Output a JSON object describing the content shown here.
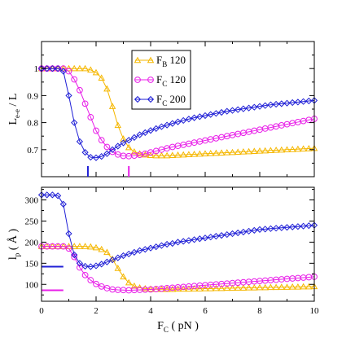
{
  "chart_data": [
    {
      "panel": "top",
      "type": "line",
      "ylabel": "L",
      "ylabel_subscript": "e-e",
      "ylabel_suffix": " / L",
      "xlim": [
        0,
        10
      ],
      "ylim": [
        0.6,
        1.1
      ],
      "yticks": [
        0.7,
        0.8,
        0.9,
        1
      ],
      "ytick_labels": [
        "0.7",
        "0.8",
        "0.9",
        "1"
      ],
      "series": [
        {
          "name": "F",
          "name_sub": "B",
          "name_suffix": " 120",
          "color": "#f5b700",
          "marker": "triangle",
          "x": [
            0,
            0.2,
            0.4,
            0.6,
            0.8,
            1.0,
            1.2,
            1.4,
            1.6,
            1.8,
            2.0,
            2.2,
            2.4,
            2.6,
            2.8,
            3.0,
            3.2,
            3.4,
            3.6,
            3.8,
            4.0,
            4.2,
            4.4,
            4.6,
            4.8,
            5.0,
            5.2,
            5.4,
            5.6,
            5.8,
            6.0,
            6.2,
            6.4,
            6.6,
            6.8,
            7.0,
            7.2,
            7.4,
            7.6,
            7.8,
            8.0,
            8.2,
            8.4,
            8.6,
            8.8,
            9.0,
            9.2,
            9.4,
            9.6,
            9.8,
            10.0
          ],
          "y": [
            1.0,
            1.0,
            1.0,
            1.0,
            1.0,
            1.0,
            1.0,
            1.0,
            1.0,
            0.995,
            0.985,
            0.965,
            0.925,
            0.86,
            0.79,
            0.74,
            0.708,
            0.692,
            0.685,
            0.681,
            0.679,
            0.678,
            0.678,
            0.678,
            0.679,
            0.68,
            0.681,
            0.682,
            0.683,
            0.684,
            0.685,
            0.686,
            0.687,
            0.688,
            0.689,
            0.69,
            0.691,
            0.692,
            0.693,
            0.694,
            0.695,
            0.696,
            0.697,
            0.698,
            0.699,
            0.7,
            0.701,
            0.702,
            0.703,
            0.704,
            0.705
          ]
        },
        {
          "name": "F",
          "name_sub": "C",
          "name_suffix": " 120",
          "color": "#e81ee8",
          "marker": "circle",
          "x": [
            0,
            0.2,
            0.4,
            0.6,
            0.8,
            1.0,
            1.2,
            1.4,
            1.6,
            1.8,
            2.0,
            2.2,
            2.4,
            2.6,
            2.8,
            3.0,
            3.2,
            3.4,
            3.6,
            3.8,
            4.0,
            4.2,
            4.4,
            4.6,
            4.8,
            5.0,
            5.2,
            5.4,
            5.6,
            5.8,
            6.0,
            6.2,
            6.4,
            6.6,
            6.8,
            7.0,
            7.2,
            7.4,
            7.6,
            7.8,
            8.0,
            8.2,
            8.4,
            8.6,
            8.8,
            9.0,
            9.2,
            9.4,
            9.6,
            9.8,
            10.0
          ],
          "y": [
            1.0,
            1.0,
            1.0,
            1.0,
            1.0,
            0.99,
            0.96,
            0.92,
            0.87,
            0.82,
            0.77,
            0.735,
            0.71,
            0.692,
            0.682,
            0.677,
            0.676,
            0.678,
            0.681,
            0.685,
            0.69,
            0.695,
            0.7,
            0.705,
            0.71,
            0.714,
            0.718,
            0.722,
            0.726,
            0.73,
            0.734,
            0.738,
            0.742,
            0.746,
            0.75,
            0.754,
            0.758,
            0.762,
            0.766,
            0.77,
            0.774,
            0.778,
            0.782,
            0.786,
            0.79,
            0.794,
            0.798,
            0.802,
            0.806,
            0.81,
            0.814
          ]
        },
        {
          "name": "F",
          "name_sub": "C",
          "name_suffix": " 200",
          "color": "#1f1fd6",
          "marker": "diamond",
          "x": [
            0,
            0.2,
            0.4,
            0.6,
            0.8,
            1.0,
            1.2,
            1.4,
            1.6,
            1.8,
            2.0,
            2.2,
            2.4,
            2.6,
            2.8,
            3.0,
            3.2,
            3.4,
            3.6,
            3.8,
            4.0,
            4.2,
            4.4,
            4.6,
            4.8,
            5.0,
            5.2,
            5.4,
            5.6,
            5.8,
            6.0,
            6.2,
            6.4,
            6.6,
            6.8,
            7.0,
            7.2,
            7.4,
            7.6,
            7.8,
            8.0,
            8.2,
            8.4,
            8.6,
            8.8,
            9.0,
            9.2,
            9.4,
            9.6,
            9.8,
            10.0
          ],
          "y": [
            1.0,
            1.0,
            1.0,
            1.0,
            0.99,
            0.9,
            0.8,
            0.73,
            0.69,
            0.672,
            0.67,
            0.675,
            0.685,
            0.7,
            0.713,
            0.725,
            0.735,
            0.745,
            0.755,
            0.763,
            0.771,
            0.778,
            0.785,
            0.791,
            0.797,
            0.803,
            0.808,
            0.813,
            0.818,
            0.822,
            0.826,
            0.83,
            0.834,
            0.838,
            0.842,
            0.845,
            0.848,
            0.851,
            0.854,
            0.857,
            0.86,
            0.863,
            0.866,
            0.868,
            0.87,
            0.872,
            0.874,
            0.876,
            0.878,
            0.88,
            0.882
          ]
        }
      ],
      "markers_on_axis": [
        {
          "x": 1.7,
          "color": "#1f1fd6"
        },
        {
          "x": 3.2,
          "color": "#e81ee8"
        }
      ],
      "legend": "top-center"
    },
    {
      "panel": "bottom",
      "type": "line",
      "xlabel": "F",
      "xlabel_subscript": "C",
      "xlabel_suffix": " ( pN )",
      "ylabel": "l",
      "ylabel_subscript": "p",
      "ylabel_suffix": " ( Å )",
      "xlim": [
        0,
        10
      ],
      "ylim": [
        60,
        330
      ],
      "xticks": [
        0,
        2,
        4,
        6,
        8,
        10
      ],
      "xtick_labels": [
        "0",
        "2",
        "4",
        "6",
        "8",
        "10"
      ],
      "yticks": [
        100,
        150,
        200,
        250,
        300
      ],
      "ytick_labels": [
        "100",
        "150",
        "200",
        "250",
        "300"
      ],
      "series": [
        {
          "name": "F",
          "name_sub": "B",
          "name_suffix": " 120",
          "color": "#f5b700",
          "marker": "triangle",
          "x": [
            0,
            0.2,
            0.4,
            0.6,
            0.8,
            1.0,
            1.2,
            1.4,
            1.6,
            1.8,
            2.0,
            2.2,
            2.4,
            2.6,
            2.8,
            3.0,
            3.2,
            3.4,
            3.6,
            3.8,
            4.0,
            4.2,
            4.4,
            4.6,
            4.8,
            5.0,
            5.2,
            5.4,
            5.6,
            5.8,
            6.0,
            6.2,
            6.4,
            6.6,
            6.8,
            7.0,
            7.2,
            7.4,
            7.6,
            7.8,
            8.0,
            8.2,
            8.4,
            8.6,
            8.8,
            9.0,
            9.2,
            9.4,
            9.6,
            9.8,
            10.0
          ],
          "y": [
            190,
            190,
            190,
            190,
            190,
            190,
            190,
            190,
            190,
            189,
            187,
            183,
            176,
            160,
            138,
            118,
            104,
            96,
            92,
            90,
            89,
            88.5,
            88.5,
            88.5,
            88.5,
            89,
            89,
            89,
            89.5,
            89.5,
            90,
            90,
            90.5,
            90.5,
            91,
            91,
            91.5,
            91.5,
            92,
            92,
            92.5,
            92.5,
            93,
            93,
            93.5,
            93.5,
            94,
            94,
            94.5,
            94.5,
            95
          ]
        },
        {
          "name": "F",
          "name_sub": "C",
          "name_suffix": " 120",
          "color": "#e81ee8",
          "marker": "circle",
          "x": [
            0,
            0.2,
            0.4,
            0.6,
            0.8,
            1.0,
            1.2,
            1.4,
            1.6,
            1.8,
            2.0,
            2.2,
            2.4,
            2.6,
            2.8,
            3.0,
            3.2,
            3.4,
            3.6,
            3.8,
            4.0,
            4.2,
            4.4,
            4.6,
            4.8,
            5.0,
            5.2,
            5.4,
            5.6,
            5.8,
            6.0,
            6.2,
            6.4,
            6.6,
            6.8,
            7.0,
            7.2,
            7.4,
            7.6,
            7.8,
            8.0,
            8.2,
            8.4,
            8.6,
            8.8,
            9.0,
            9.2,
            9.4,
            9.6,
            9.8,
            10.0
          ],
          "y": [
            190,
            190,
            190,
            190,
            190,
            185,
            165,
            140,
            122,
            110,
            101,
            95,
            91,
            88,
            87,
            86.5,
            86,
            86.5,
            87,
            87.5,
            88,
            89,
            90,
            91,
            92,
            93,
            94,
            95,
            96,
            97,
            98,
            99,
            100,
            101,
            102,
            103,
            104,
            105,
            106,
            107,
            108,
            109,
            110,
            111,
            112,
            113,
            114,
            115,
            116,
            117,
            118
          ]
        },
        {
          "name": "F",
          "name_sub": "C",
          "name_suffix": " 200",
          "color": "#1f1fd6",
          "marker": "diamond",
          "x": [
            0,
            0.2,
            0.4,
            0.6,
            0.8,
            1.0,
            1.2,
            1.4,
            1.6,
            1.8,
            2.0,
            2.2,
            2.4,
            2.6,
            2.8,
            3.0,
            3.2,
            3.4,
            3.6,
            3.8,
            4.0,
            4.2,
            4.4,
            4.6,
            4.8,
            5.0,
            5.2,
            5.4,
            5.6,
            5.8,
            6.0,
            6.2,
            6.4,
            6.6,
            6.8,
            7.0,
            7.2,
            7.4,
            7.6,
            7.8,
            8.0,
            8.2,
            8.4,
            8.6,
            8.8,
            9.0,
            9.2,
            9.4,
            9.6,
            9.8,
            10.0
          ],
          "y": [
            312,
            312,
            312,
            310,
            290,
            220,
            170,
            150,
            143,
            142,
            144,
            148,
            153,
            158,
            163,
            168,
            172,
            176,
            180,
            183,
            186,
            189,
            192,
            195,
            197,
            200,
            202,
            204,
            206,
            208,
            210,
            212,
            214,
            216,
            218,
            220,
            222,
            224,
            226,
            228,
            230,
            231,
            232,
            233,
            234,
            235,
            236,
            237,
            238,
            239,
            240
          ]
        }
      ],
      "reference_lines": [
        {
          "x_range": [
            0,
            0.8
          ],
          "y": 142,
          "color": "#1f1fd6"
        },
        {
          "x_range": [
            0,
            0.8
          ],
          "y": 86,
          "color": "#e81ee8"
        }
      ]
    }
  ]
}
